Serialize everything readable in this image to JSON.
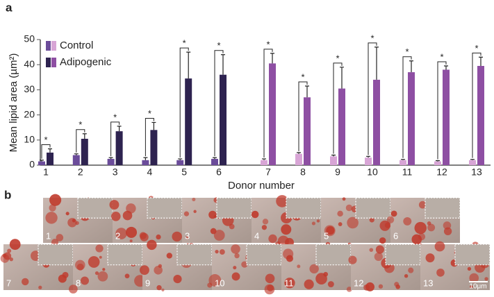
{
  "panel_labels": [
    "a",
    "b"
  ],
  "chart_data": {
    "type": "bar",
    "y_label": "Mean lipid area (µm²)",
    "x_label": "Donor number",
    "categories": [
      "1",
      "2",
      "3",
      "4",
      "5",
      "6",
      "7",
      "8",
      "9",
      "10",
      "11",
      "12",
      "13"
    ],
    "series": [
      {
        "name": "Control",
        "colors": [
          "#6b4c9a",
          "#6b4c9a",
          "#6b4c9a",
          "#6b4c9a",
          "#6b4c9a",
          "#6b4c9a",
          "#d8a5d6",
          "#d8a5d6",
          "#d8a5d6",
          "#d8a5d6",
          "#d8a5d6",
          "#d8a5d6",
          "#d8a5d6"
        ],
        "values": [
          1.5,
          4,
          2.5,
          2,
          2,
          2.5,
          2,
          4.5,
          3.5,
          3,
          2,
          1.5,
          2
        ],
        "errors": [
          0.5,
          0.5,
          0.5,
          1,
          0.5,
          0.5,
          0.5,
          0.5,
          0.5,
          0.5,
          0.3,
          0.3,
          0.3
        ]
      },
      {
        "name": "Adipogenic",
        "colors": [
          "#2e2350",
          "#2e2350",
          "#2e2350",
          "#2e2350",
          "#2e2350",
          "#2e2350",
          "#8e4fa3",
          "#8e4fa3",
          "#8e4fa3",
          "#8e4fa3",
          "#8e4fa3",
          "#8e4fa3",
          "#8e4fa3"
        ],
        "values": [
          5,
          10.5,
          13.5,
          14,
          34.5,
          36,
          40.5,
          27,
          30.5,
          34,
          37,
          38,
          39.5
        ],
        "errors": [
          1.5,
          2,
          2,
          3,
          10.5,
          8,
          4,
          4.5,
          8.5,
          13,
          4.5,
          1.5,
          3.5
        ]
      }
    ],
    "significance": [
      "*",
      "*",
      "*",
      "*",
      "*",
      "*",
      "*",
      "*",
      "*",
      "*",
      "*",
      "*",
      "*"
    ],
    "ylim": [
      0,
      50
    ],
    "yticks": [
      0,
      10,
      20,
      30,
      40,
      50
    ]
  },
  "panel_b": {
    "tile_labels": [
      "1",
      "2",
      "3",
      "4",
      "5",
      "6",
      "7",
      "8",
      "9",
      "10",
      "11",
      "12",
      "13"
    ],
    "scale_bar": "10μm"
  }
}
